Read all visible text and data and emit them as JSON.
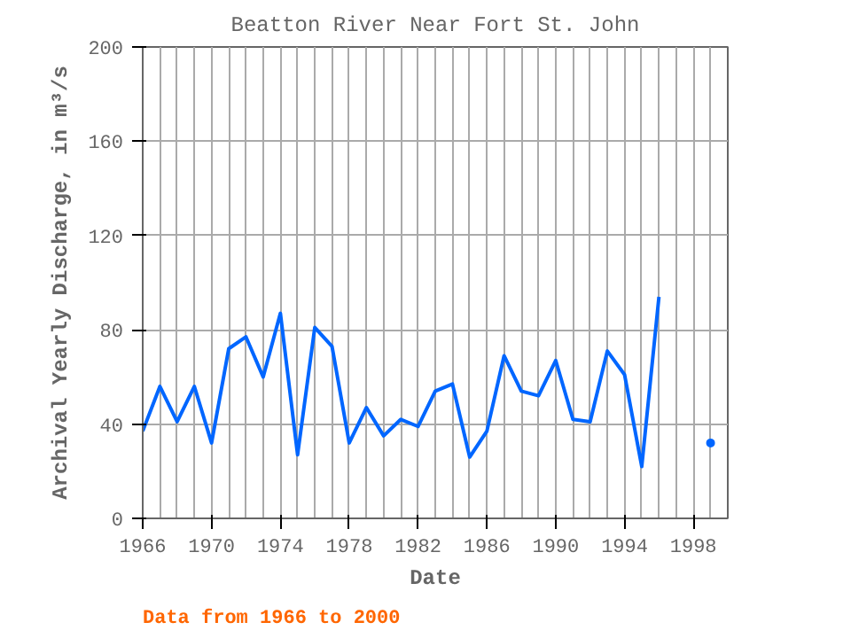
{
  "chart_data": {
    "type": "line",
    "title": "Beatton River Near Fort St. John",
    "xlabel": "Date",
    "ylabel": "Archival Yearly Discharge, in m³/s",
    "x": [
      1966,
      1967,
      1968,
      1969,
      1970,
      1971,
      1972,
      1973,
      1974,
      1975,
      1976,
      1977,
      1978,
      1979,
      1980,
      1981,
      1982,
      1983,
      1984,
      1985,
      1986,
      1987,
      1988,
      1989,
      1990,
      1991,
      1992,
      1993,
      1994,
      1995,
      1996,
      1997,
      1998,
      1999
    ],
    "series": [
      {
        "color": "#0066ff",
        "values": [
          37,
          56,
          41,
          56,
          32,
          72,
          77,
          60,
          87,
          27,
          81,
          73,
          32,
          47,
          35,
          42,
          39,
          54,
          57,
          26,
          37,
          69,
          54,
          52,
          67,
          42,
          41,
          71,
          61,
          22,
          94,
          null,
          null,
          32
        ]
      }
    ],
    "xlim": [
      1966,
      2000
    ],
    "xticks": [
      1966,
      1970,
      1974,
      1978,
      1982,
      1986,
      1990,
      1994,
      1998
    ],
    "ylim": [
      0,
      200
    ],
    "yticks": [
      0,
      40,
      80,
      120,
      160,
      200
    ],
    "grid": true,
    "marker": "none",
    "line_style": "solid",
    "annotations": [
      "Data from 1966 to 2000"
    ]
  }
}
